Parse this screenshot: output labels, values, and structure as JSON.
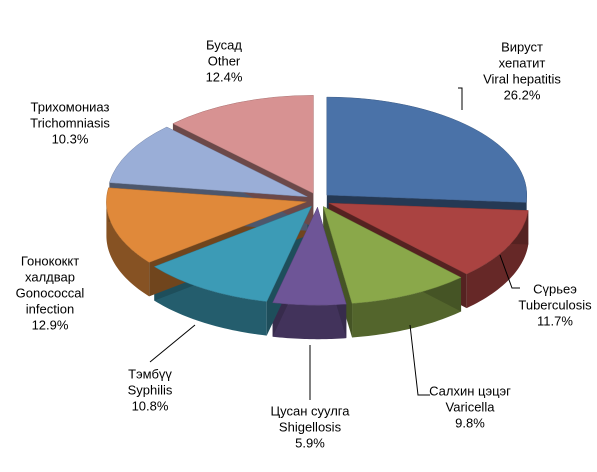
{
  "chart_data": {
    "type": "pie3d",
    "labels": [
      [
        "Вируст",
        "хепатит",
        "Viral hepatitis"
      ],
      [
        "Сүрьеэ",
        "Tuberculosis"
      ],
      [
        "Салхин цэцэг",
        "Varicella"
      ],
      [
        "Цусан суулга",
        "Shigellosis"
      ],
      [
        "Тэмбүү",
        "Syphilis"
      ],
      [
        "Гонококкт",
        "халдвар",
        "Gonococcal",
        "infection"
      ],
      [
        "Трихомониаз",
        "Trichomniasis"
      ],
      [
        "Бусад",
        "Other"
      ]
    ],
    "values": [
      26.2,
      11.7,
      9.8,
      5.9,
      10.8,
      12.9,
      10.3,
      12.4
    ],
    "value_labels": [
      "26.2%",
      "11.7%",
      "9.8%",
      "5.9%",
      "10.8%",
      "12.9%",
      "10.3%",
      "12.4%"
    ],
    "colors": [
      "#4a72a8",
      "#aa4341",
      "#8aa84a",
      "#6e5597",
      "#3c9bb6",
      "#e0893a",
      "#9aaed7",
      "#d79292"
    ],
    "start_angle": 0,
    "direction": "clockwise"
  }
}
